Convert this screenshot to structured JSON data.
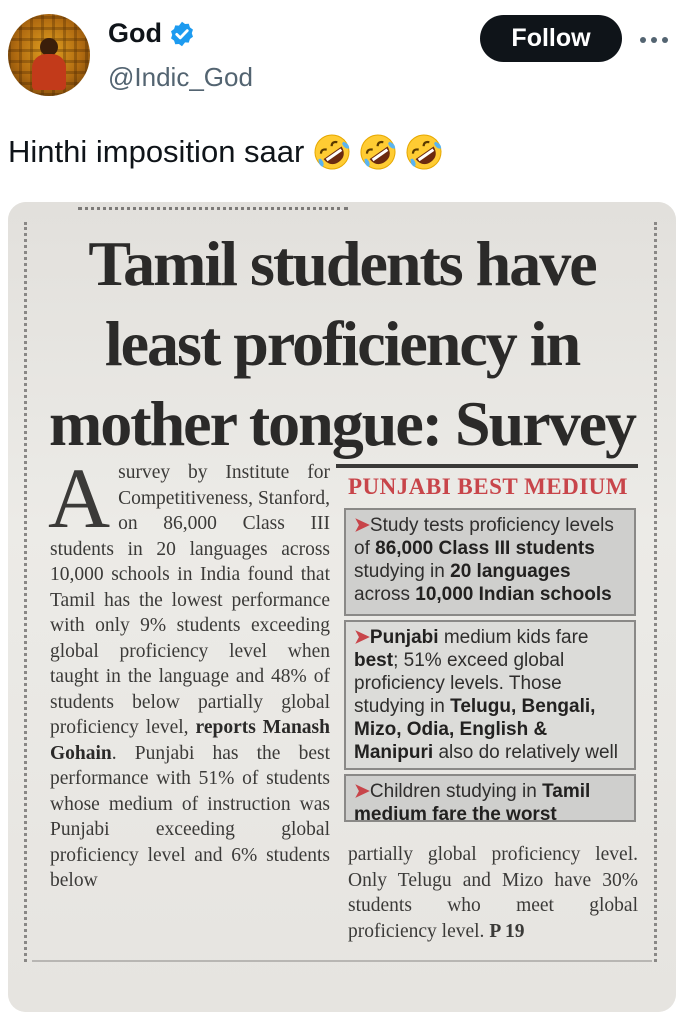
{
  "user": {
    "display_name": "God",
    "handle": "@Indic_God",
    "follow_label": "Follow",
    "verified_color": "#1d9bf0"
  },
  "tweet": {
    "text": "Hinthi imposition saar",
    "emoji_icon": "rolling-on-floor-laughing-emoji",
    "emoji_count": 3
  },
  "article": {
    "headline_lines": [
      "Tamil students have",
      "least proficiency in",
      "mother tongue: Survey"
    ],
    "drop_cap": "A",
    "body_intro": "survey by Institute for Competitiveness, Stanford, on 86,000 Class III students in 20 languages across 10,000 schools in India found that Tamil has the lowest performance with only 9% students exceeding global proficiency level when taught in the language and 48% of students below partially global proficiency level, ",
    "body_byline": "reports Manash Gohain",
    "body_rest": ". Punjabi has the best performance with 51% of students whose medium of instruction was Punjabi exceeding global proficiency level and 6% students below",
    "sidebar_title": "PUNJABI BEST MEDIUM",
    "box1": {
      "t1": "Study tests proficiency levels of ",
      "b1": "86,000 Class III students",
      "t2": " studying in ",
      "b2": "20 languages",
      "t3": " across ",
      "b3": "10,000 Indian schools"
    },
    "box2": {
      "b1": "Punjabi",
      "t1": " medium kids fare ",
      "b2": "best",
      "t2": "; 51% exceed global proficiency levels. Those studying in ",
      "b3": "Telugu, Bengali, Mizo, Odia, English & Manipuri",
      "t3": " also do relatively well"
    },
    "box3": {
      "t1": "Children studying in ",
      "b1": "Tamil medium fare the worst"
    },
    "tail_text": "partially global proficiency level. Only Telugu and Mizo have 30% students who meet global proficiency level. ",
    "page_ref": "P 19",
    "colors": {
      "accent_red": "#c8454a",
      "ink": "#3b3a38"
    }
  }
}
